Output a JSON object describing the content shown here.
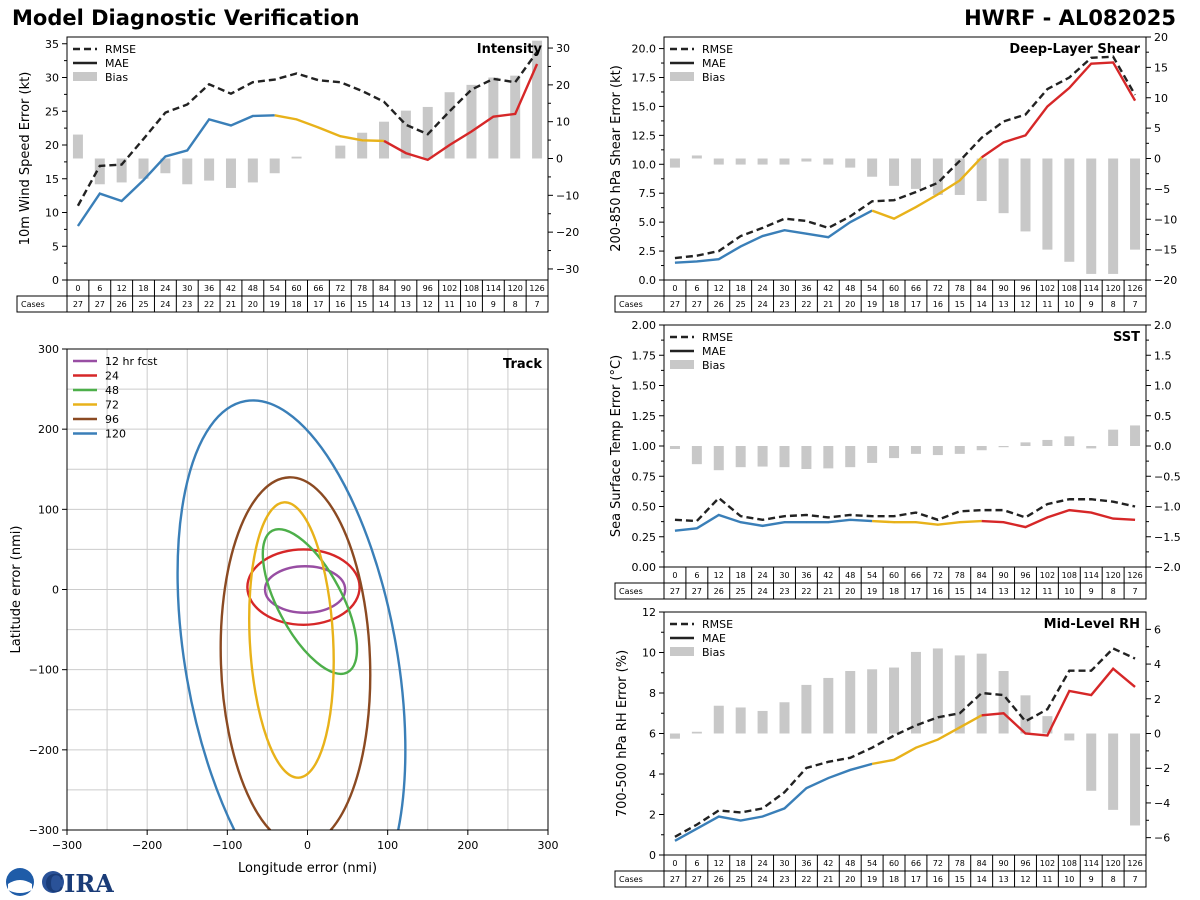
{
  "header": {
    "title_left": "Model Diagnostic Verification",
    "title_right": "HWRF - AL082025"
  },
  "logo": {
    "text": "CIRA"
  },
  "colors": {
    "rmse": "#222222",
    "mae_early": "#3a7fb8",
    "mae_mid": "#e8b21a",
    "mae_late": "#d62728",
    "bias": "#c8c8c8",
    "grid": "#cccccc",
    "track_12": "#984ea3",
    "track_24": "#d62728",
    "track_48": "#4daf4a",
    "track_72": "#e8b21a",
    "track_96": "#8b4a22",
    "track_120": "#3a7fb8"
  },
  "chart_data": [
    {
      "id": "intensity",
      "type": "line",
      "title": "Intensity",
      "ylabel": "10m Wind Speed Error (kt)",
      "ylim": [
        0,
        36
      ],
      "yticks": [
        0,
        5,
        10,
        15,
        20,
        25,
        30,
        35
      ],
      "y2lim": [
        -33,
        33
      ],
      "y2ticks": [
        -30,
        -20,
        -10,
        0,
        10,
        20,
        30
      ],
      "legend": [
        "RMSE",
        "MAE",
        "Bias"
      ],
      "x": [
        0,
        6,
        12,
        18,
        24,
        30,
        36,
        42,
        48,
        54,
        60,
        66,
        72,
        78,
        84,
        90,
        96,
        102,
        108,
        114,
        120,
        126
      ],
      "cases": [
        27,
        27,
        26,
        25,
        24,
        23,
        22,
        21,
        20,
        19,
        18,
        17,
        16,
        15,
        14,
        13,
        12,
        11,
        10,
        9,
        8,
        7
      ],
      "rmse": [
        11,
        16.9,
        17.1,
        20.9,
        24.8,
        26,
        29,
        27.6,
        29.3,
        29.7,
        30.6,
        29.6,
        29.3,
        28,
        26.4,
        23,
        21.6,
        25,
        28.2,
        29.8,
        29.3,
        33.8
      ],
      "mae": [
        8,
        12.8,
        11.7,
        14.8,
        18.3,
        19.2,
        23.8,
        22.9,
        24.3,
        24.4,
        23.8,
        22.6,
        21.3,
        20.7,
        20.6,
        18.8,
        17.8,
        20,
        22,
        24.2,
        24.6,
        32
      ],
      "bias": [
        6.5,
        -7,
        -6.5,
        -5.5,
        -4,
        -7,
        -6,
        -8,
        -6.5,
        -4,
        0.5,
        0,
        3.5,
        7,
        10,
        13,
        14,
        18,
        20,
        22,
        22.5,
        32
      ]
    },
    {
      "id": "shear",
      "type": "line",
      "title": "Deep-Layer Shear",
      "ylabel": "200-850 hPa Shear Error (kt)",
      "ylim": [
        0,
        21
      ],
      "yticks": [
        0,
        2.5,
        5,
        7.5,
        10,
        12.5,
        15,
        17.5,
        20
      ],
      "y2lim": [
        -20,
        20
      ],
      "y2ticks": [
        -20,
        -15,
        -10,
        -5,
        0,
        5,
        10,
        15,
        20
      ],
      "legend": [
        "RMSE",
        "MAE",
        "Bias"
      ],
      "x": [
        0,
        6,
        12,
        18,
        24,
        30,
        36,
        42,
        48,
        54,
        60,
        66,
        72,
        78,
        84,
        90,
        96,
        102,
        108,
        114,
        120,
        126
      ],
      "cases": [
        27,
        27,
        26,
        25,
        24,
        23,
        22,
        21,
        20,
        19,
        18,
        17,
        16,
        15,
        14,
        13,
        12,
        11,
        10,
        9,
        8,
        7
      ],
      "rmse": [
        1.9,
        2.1,
        2.5,
        3.8,
        4.5,
        5.3,
        5.1,
        4.5,
        5.5,
        6.8,
        6.9,
        7.6,
        8.4,
        10.3,
        12.3,
        13.7,
        14.3,
        16.5,
        17.5,
        19.2,
        19.3,
        16
      ],
      "mae": [
        1.5,
        1.6,
        1.8,
        2.9,
        3.8,
        4.3,
        4,
        3.7,
        5,
        6,
        5.3,
        6.3,
        7.4,
        8.6,
        10.6,
        11.9,
        12.5,
        15,
        16.6,
        18.7,
        18.8,
        15.5
      ],
      "bias": [
        -1.5,
        0.5,
        -1,
        -1,
        -1,
        -1,
        -0.5,
        -1,
        -1.5,
        -3,
        -4.5,
        -5,
        -6,
        -6,
        -7,
        -9,
        -12,
        -15,
        -17,
        -19,
        -19,
        -15
      ]
    },
    {
      "id": "sst",
      "type": "line",
      "title": "SST",
      "ylabel": "Sea Surface Temp Error (°C)",
      "ylim": [
        0,
        2
      ],
      "yticks": [
        0.0,
        0.25,
        0.5,
        0.75,
        1.0,
        1.25,
        1.5,
        1.75,
        2.0
      ],
      "y2lim": [
        -2,
        2
      ],
      "y2ticks": [
        -2.0,
        -1.5,
        -1.0,
        -0.5,
        0.0,
        0.5,
        1.0,
        1.5,
        2.0
      ],
      "legend": [
        "RMSE",
        "MAE",
        "Bias"
      ],
      "x": [
        0,
        6,
        12,
        18,
        24,
        30,
        36,
        42,
        48,
        54,
        60,
        66,
        72,
        78,
        84,
        90,
        96,
        102,
        108,
        114,
        120,
        126
      ],
      "cases": [
        27,
        27,
        26,
        25,
        24,
        23,
        22,
        21,
        20,
        19,
        18,
        17,
        16,
        15,
        14,
        13,
        12,
        11,
        10,
        9,
        8,
        7
      ],
      "rmse": [
        0.39,
        0.38,
        0.57,
        0.42,
        0.39,
        0.42,
        0.43,
        0.41,
        0.43,
        0.42,
        0.42,
        0.45,
        0.39,
        0.46,
        0.47,
        0.47,
        0.41,
        0.52,
        0.56,
        0.56,
        0.54,
        0.5
      ],
      "mae": [
        0.3,
        0.32,
        0.43,
        0.37,
        0.34,
        0.37,
        0.37,
        0.37,
        0.39,
        0.38,
        0.37,
        0.37,
        0.35,
        0.37,
        0.38,
        0.37,
        0.33,
        0.41,
        0.47,
        0.45,
        0.4,
        0.39
      ],
      "bias": [
        -0.05,
        -0.3,
        -0.4,
        -0.35,
        -0.34,
        -0.35,
        -0.38,
        -0.37,
        -0.35,
        -0.28,
        -0.2,
        -0.13,
        -0.15,
        -0.13,
        -0.07,
        -0.02,
        0.06,
        0.1,
        0.16,
        -0.04,
        0.27,
        0.34
      ]
    },
    {
      "id": "rh",
      "type": "line",
      "title": "Mid-Level RH",
      "ylabel": "700-500 hPa RH Error (%)",
      "ylim": [
        0,
        12
      ],
      "yticks": [
        0,
        2,
        4,
        6,
        8,
        10,
        12
      ],
      "y2lim": [
        -7,
        7
      ],
      "y2ticks": [
        -6,
        -4,
        -2,
        0,
        2,
        4,
        6
      ],
      "legend": [
        "RMSE",
        "MAE",
        "Bias"
      ],
      "x": [
        0,
        6,
        12,
        18,
        24,
        30,
        36,
        42,
        48,
        54,
        60,
        66,
        72,
        78,
        84,
        90,
        96,
        102,
        108,
        114,
        120,
        126
      ],
      "cases": [
        27,
        27,
        26,
        25,
        24,
        23,
        22,
        21,
        20,
        19,
        18,
        17,
        16,
        15,
        14,
        13,
        12,
        11,
        10,
        9,
        8,
        7
      ],
      "rmse": [
        0.9,
        1.5,
        2.2,
        2.1,
        2.3,
        3.1,
        4.3,
        4.6,
        4.8,
        5.3,
        5.9,
        6.4,
        6.8,
        7,
        8,
        7.9,
        6.6,
        7.2,
        9.1,
        9.1,
        10.2,
        9.7
      ],
      "mae": [
        0.7,
        1.3,
        1.9,
        1.7,
        1.9,
        2.3,
        3.3,
        3.8,
        4.2,
        4.5,
        4.7,
        5.3,
        5.7,
        6.3,
        6.9,
        7,
        6,
        5.9,
        8.1,
        7.9,
        9.2,
        8.3
      ],
      "bias": [
        -0.3,
        0.1,
        1.6,
        1.5,
        1.3,
        1.8,
        2.8,
        3.2,
        3.6,
        3.7,
        3.8,
        4.7,
        4.9,
        4.5,
        4.6,
        3.6,
        2.2,
        1.0,
        -0.4,
        -3.3,
        -4.4,
        -5.3
      ]
    },
    {
      "id": "track",
      "type": "scatter",
      "title": "Track",
      "xlabel": "Longitude error (nmi)",
      "ylabel": "Latitude error (nmi)",
      "xlim": [
        -300,
        300
      ],
      "ylim": [
        -300,
        300
      ],
      "xticks": [
        -300,
        -200,
        -100,
        0,
        100,
        200,
        300
      ],
      "yticks": [
        -300,
        -200,
        -100,
        0,
        100,
        200,
        300
      ],
      "ellipses": [
        {
          "label": "12 hr fcst",
          "cx": -3,
          "cy": 0,
          "rx": 50,
          "ry": 29,
          "rot": 0,
          "color": "track_12"
        },
        {
          "label": "24",
          "cx": -5,
          "cy": 3,
          "rx": 70,
          "ry": 47,
          "rot": 0,
          "color": "track_24"
        },
        {
          "label": "48",
          "cx": 3,
          "cy": -15,
          "rx": 40,
          "ry": 100,
          "rot": -28,
          "color": "track_48"
        },
        {
          "label": "72",
          "cx": -20,
          "cy": -63,
          "rx": 52,
          "ry": 172,
          "rot": -3,
          "color": "track_72"
        },
        {
          "label": "96",
          "cx": -15,
          "cy": -90,
          "rx": 93,
          "ry": 230,
          "rot": -2,
          "color": "track_96"
        },
        {
          "label": "120",
          "cx": -20,
          "cy": -90,
          "rx": 132,
          "ry": 330,
          "rot": -10,
          "color": "track_120"
        }
      ]
    }
  ]
}
